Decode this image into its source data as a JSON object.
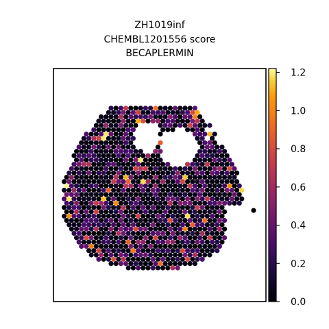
{
  "chart_data": {
    "type": "scatter",
    "plot_kind": "spatial spot map (hexagonal spots) with colorbar",
    "title_lines": [
      "ZH1019inf",
      "CHEMBL1201556 score",
      "BECAPLERMIN"
    ],
    "xlabel": "",
    "ylabel": "",
    "axes_ticks_visible": false,
    "grid": false,
    "colormap": "inferno",
    "colorbar": {
      "position": "right",
      "range": [
        0.0,
        1.22
      ],
      "ticks": [
        0.0,
        0.2,
        0.4,
        0.6,
        0.8,
        1.0,
        1.2
      ],
      "tick_labels": [
        "0.0",
        "0.2",
        "0.4",
        "0.6",
        "0.8",
        "1.0",
        "1.2"
      ]
    },
    "tissue_description": "roughly circular tissue section of dense spots, mostly near 0 (black), with scattered purple/orange/yellow spots; irregular gaps in the upper-right region",
    "highlighted_spots_approx": [
      {
        "score": 1.2
      },
      {
        "score": 1.15
      },
      {
        "score": 1.1
      },
      {
        "score": 1.05
      },
      {
        "score": 0.9
      },
      {
        "score": 0.85
      },
      {
        "score": 0.8
      },
      {
        "score": 0.75
      }
    ]
  }
}
